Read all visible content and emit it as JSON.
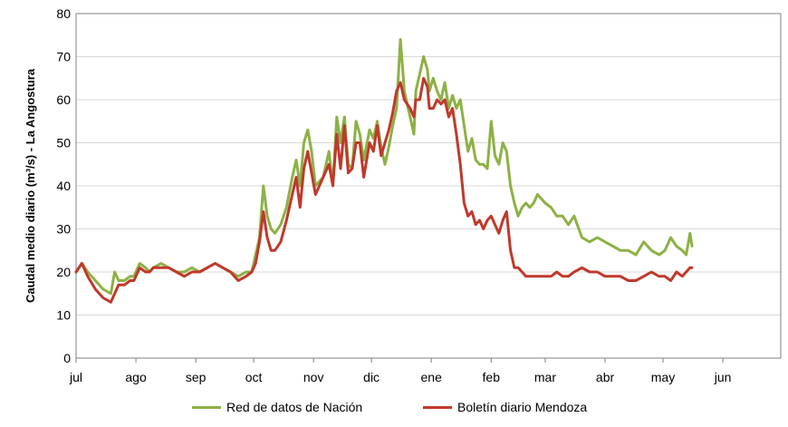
{
  "chart_data": {
    "type": "line",
    "xlabel": "",
    "ylabel": "Caudal medio diario (m³/s) - La Angostura",
    "ylim": [
      0,
      80
    ],
    "yticks": [
      0,
      10,
      20,
      30,
      40,
      50,
      60,
      70,
      80
    ],
    "grid": "horizontal",
    "legend_position": "bottom",
    "x_unit": "day index from start of jul",
    "xlim": [
      0,
      365
    ],
    "months": [
      "jul",
      "ago",
      "sep",
      "oct",
      "nov",
      "dic",
      "ene",
      "feb",
      "mar",
      "abr",
      "may",
      "jun"
    ],
    "month_starts": [
      0,
      31,
      62,
      92,
      123,
      153,
      184,
      215,
      243,
      274,
      304,
      335
    ],
    "series": [
      {
        "name": "Red de datos de Nación",
        "color": "#8db145",
        "x": [
          0,
          3,
          6,
          10,
          14,
          18,
          20,
          22,
          25,
          28,
          30,
          33,
          36,
          38,
          40,
          44,
          48,
          52,
          56,
          60,
          64,
          68,
          72,
          76,
          80,
          84,
          88,
          91,
          93,
          95,
          97,
          99,
          101,
          103,
          106,
          109,
          112,
          114,
          116,
          118,
          120,
          122,
          124,
          126,
          128,
          131,
          133,
          135,
          137,
          139,
          141,
          143,
          145,
          147,
          149,
          152,
          154,
          156,
          158,
          160,
          162,
          164,
          166,
          168,
          170,
          173,
          175,
          176,
          178,
          180,
          182,
          183,
          185,
          187,
          189,
          191,
          193,
          195,
          197,
          199,
          201,
          203,
          205,
          207,
          209,
          211,
          213,
          215,
          217,
          219,
          221,
          223,
          225,
          227,
          229,
          231,
          233,
          235,
          237,
          239,
          241,
          243,
          246,
          249,
          252,
          255,
          258,
          262,
          266,
          270,
          274,
          278,
          282,
          286,
          290,
          294,
          298,
          302,
          305,
          308,
          311,
          314,
          316,
          318,
          319
        ],
        "values": [
          20,
          22,
          20,
          18,
          16,
          15,
          20,
          18,
          18,
          19,
          19,
          22,
          21,
          20,
          21,
          22,
          21,
          20,
          20,
          21,
          20,
          21,
          22,
          21,
          20,
          19,
          20,
          20,
          24,
          28,
          40,
          33,
          30,
          29,
          31,
          35,
          42,
          46,
          40,
          50,
          53,
          48,
          40,
          41,
          42,
          48,
          40,
          56,
          50,
          56,
          45,
          44,
          55,
          52,
          46,
          53,
          51,
          55,
          49,
          45,
          49,
          54,
          58,
          74,
          62,
          56,
          52,
          62,
          66,
          70,
          67,
          62,
          65,
          62,
          60,
          64,
          58,
          61,
          58,
          60,
          54,
          48,
          51,
          46,
          45,
          45,
          44,
          55,
          47,
          45,
          50,
          48,
          40,
          36,
          33,
          35,
          36,
          35,
          36,
          38,
          37,
          36,
          35,
          33,
          33,
          31,
          33,
          28,
          27,
          28,
          27,
          26,
          25,
          25,
          24,
          27,
          25,
          24,
          25,
          28,
          26,
          25,
          24,
          29,
          26
        ]
      },
      {
        "name": "Boletín diario Mendoza",
        "color": "#c0392b",
        "x": [
          0,
          3,
          6,
          10,
          14,
          18,
          20,
          22,
          25,
          28,
          30,
          33,
          36,
          38,
          40,
          44,
          48,
          52,
          56,
          60,
          64,
          68,
          72,
          76,
          80,
          84,
          88,
          91,
          93,
          95,
          97,
          99,
          101,
          103,
          106,
          109,
          112,
          114,
          116,
          118,
          120,
          122,
          124,
          126,
          128,
          131,
          133,
          135,
          137,
          139,
          141,
          143,
          145,
          147,
          149,
          152,
          154,
          156,
          158,
          160,
          162,
          164,
          166,
          168,
          170,
          173,
          175,
          176,
          178,
          180,
          182,
          183,
          185,
          187,
          189,
          191,
          193,
          195,
          197,
          199,
          201,
          203,
          205,
          207,
          209,
          211,
          213,
          215,
          217,
          219,
          221,
          223,
          225,
          227,
          229,
          231,
          233,
          235,
          237,
          239,
          241,
          243,
          246,
          249,
          252,
          255,
          258,
          262,
          266,
          270,
          274,
          278,
          282,
          286,
          290,
          294,
          298,
          302,
          305,
          308,
          311,
          314,
          316,
          318,
          319
        ],
        "values": [
          20,
          22,
          19,
          16,
          14,
          13,
          15,
          17,
          17,
          18,
          18,
          21,
          20,
          20,
          21,
          21,
          21,
          20,
          19,
          20,
          20,
          21,
          22,
          21,
          20,
          18,
          19,
          20,
          22,
          27,
          34,
          28,
          25,
          25,
          27,
          32,
          38,
          42,
          35,
          44,
          48,
          43,
          38,
          40,
          42,
          45,
          40,
          52,
          44,
          54,
          43,
          44,
          50,
          50,
          42,
          50,
          48,
          54,
          47,
          50,
          53,
          57,
          62,
          64,
          60,
          58,
          56,
          60,
          60,
          65,
          63,
          58,
          58,
          60,
          59,
          60,
          56,
          58,
          52,
          45,
          36,
          33,
          34,
          31,
          32,
          30,
          32,
          33,
          31,
          29,
          32,
          34,
          25,
          21,
          21,
          20,
          19,
          19,
          19,
          19,
          19,
          19,
          19,
          20,
          19,
          19,
          20,
          21,
          20,
          20,
          19,
          19,
          19,
          18,
          18,
          19,
          20,
          19,
          19,
          18,
          20,
          19,
          20,
          21,
          21
        ]
      }
    ]
  }
}
